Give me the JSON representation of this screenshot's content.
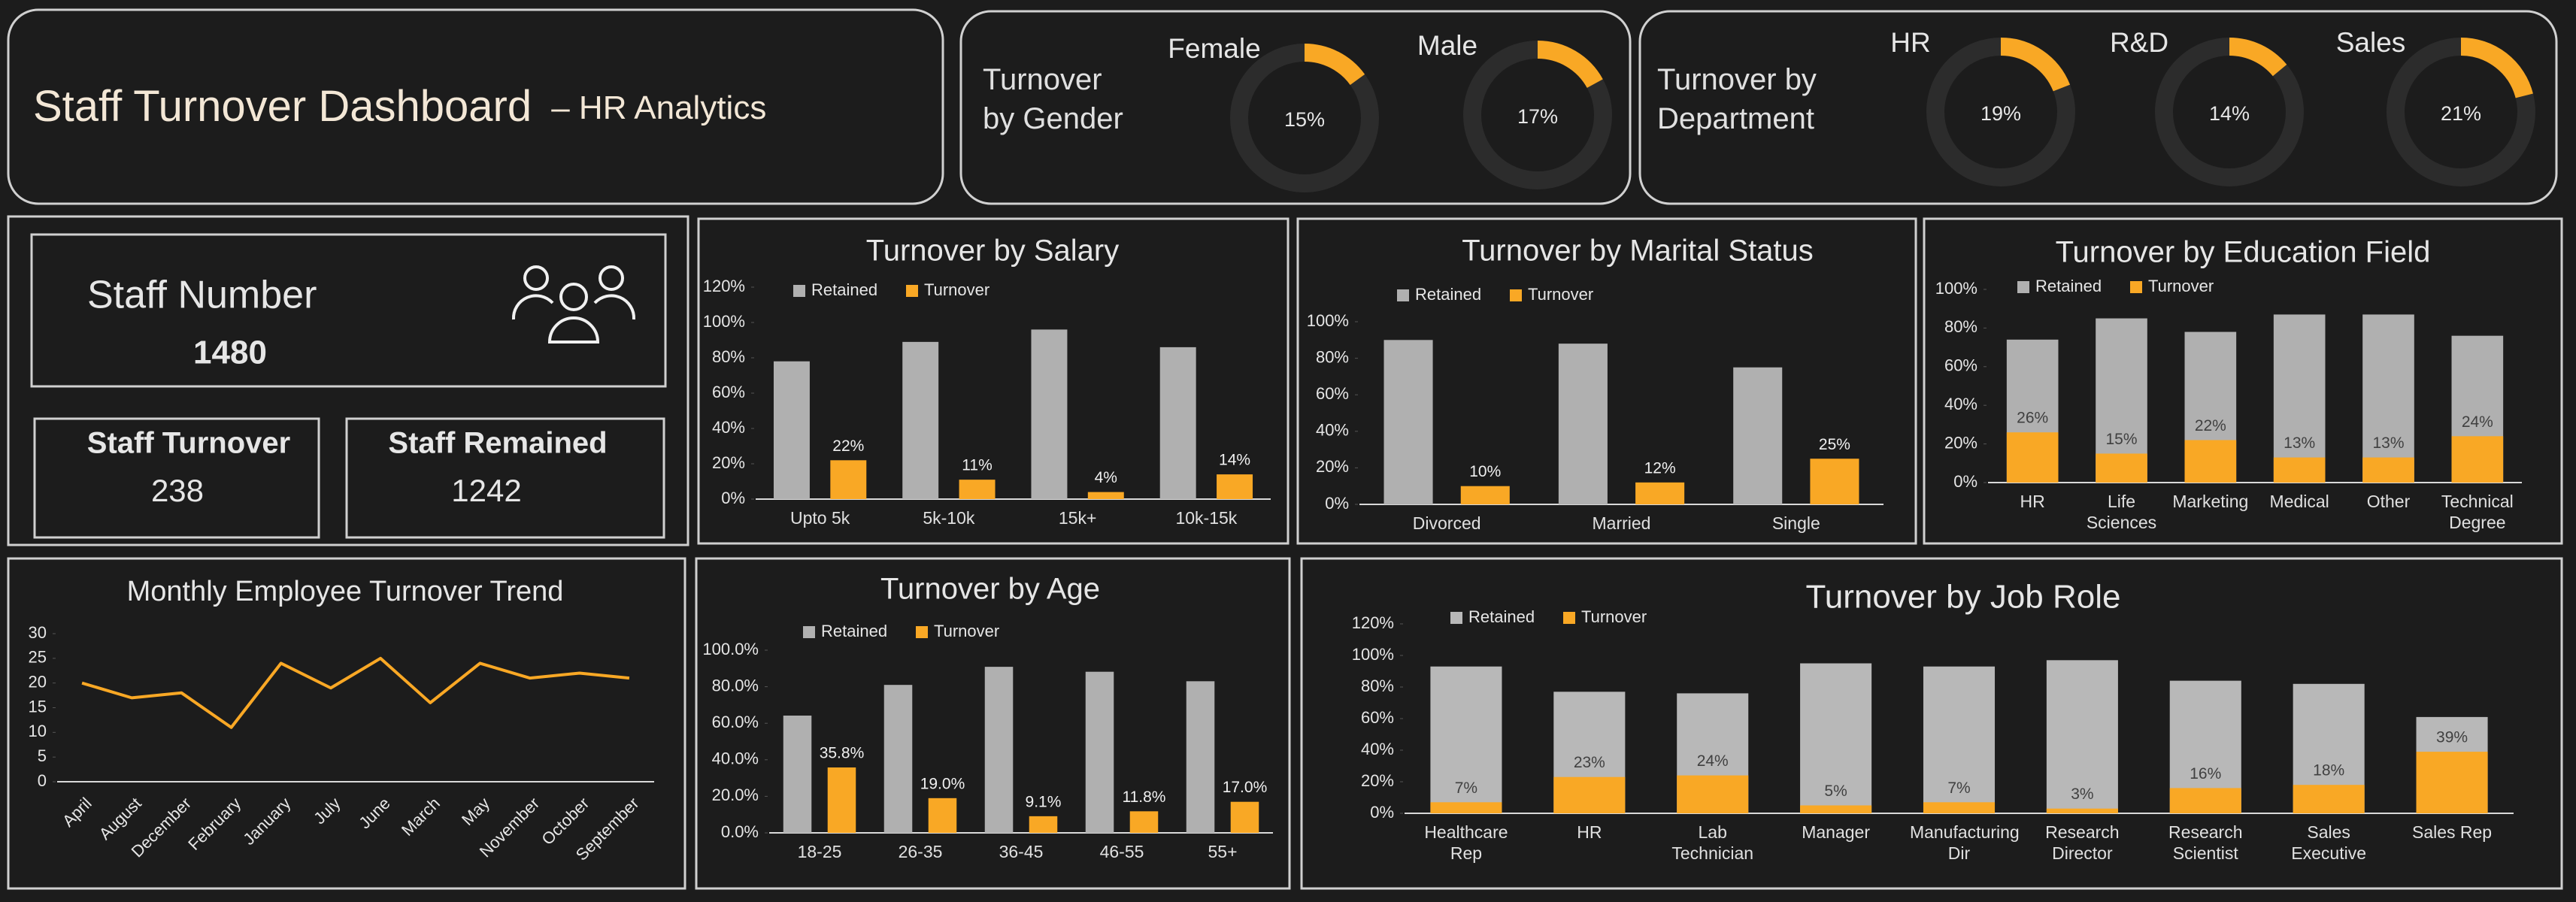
{
  "header": {
    "title": "Staff Turnover Dashboard",
    "subtitle": "– HR Analytics"
  },
  "kpis": {
    "staff_number": {
      "label": "Staff Number",
      "value": 1480
    },
    "staff_turnover": {
      "label": "Staff Turnover",
      "value": 238
    },
    "staff_remained": {
      "label": "Staff Remained",
      "value": 1242
    }
  },
  "chart_data": [
    {
      "type": "donut",
      "title": "Turnover by Gender",
      "categories": [
        "Female",
        "Male"
      ],
      "values": [
        15,
        17
      ],
      "value_labels": [
        "15%",
        "17%"
      ],
      "color": "#f9a825"
    },
    {
      "type": "donut",
      "title": "Turnover by Department",
      "categories": [
        "HR",
        "R&D",
        "Sales"
      ],
      "values": [
        19,
        14,
        21
      ],
      "value_labels": [
        "19%",
        "14%",
        "21%"
      ],
      "color": "#f9a825"
    },
    {
      "type": "bar",
      "title": "Turnover by Salary",
      "categories": [
        "Upto 5k",
        "5k-10k",
        "15k+",
        "10k-15k"
      ],
      "series": [
        {
          "name": "Retained",
          "color": "#b0b0b0",
          "values": [
            78,
            89,
            96,
            86
          ]
        },
        {
          "name": "Turnover",
          "color": "#f9a825",
          "values": [
            22,
            11,
            4,
            14
          ],
          "value_labels": [
            "22%",
            "11%",
            "4%",
            "14%"
          ]
        }
      ],
      "ylim": [
        0,
        120
      ],
      "yticks": [
        {
          "value": 0,
          "label": "0%"
        },
        {
          "value": 20,
          "label": "20%"
        },
        {
          "value": 40,
          "label": "40%"
        },
        {
          "value": 60,
          "label": "60%"
        },
        {
          "value": 80,
          "label": "80%"
        },
        {
          "value": 100,
          "label": "100%"
        },
        {
          "value": 120,
          "label": "120%"
        }
      ],
      "overlap": false
    },
    {
      "type": "bar",
      "title": "Turnover by Marital Status",
      "categories": [
        "Divorced",
        "Married",
        "Single"
      ],
      "series": [
        {
          "name": "Retained",
          "color": "#b0b0b0",
          "values": [
            90,
            88,
            75
          ]
        },
        {
          "name": "Turnover",
          "color": "#f9a825",
          "values": [
            10,
            12,
            25
          ],
          "value_labels": [
            "10%",
            "12%",
            "25%"
          ]
        }
      ],
      "ylim": [
        0,
        100
      ],
      "yticks": [
        {
          "value": 0,
          "label": "0%"
        },
        {
          "value": 20,
          "label": "20%"
        },
        {
          "value": 40,
          "label": "40%"
        },
        {
          "value": 60,
          "label": "60%"
        },
        {
          "value": 80,
          "label": "80%"
        },
        {
          "value": 100,
          "label": "100%"
        }
      ],
      "overlap": false
    },
    {
      "type": "bar",
      "title": "Turnover by Education Field",
      "categories": [
        "HR",
        "Life Sciences",
        "Marketing",
        "Medical",
        "Other",
        "Technical Degree"
      ],
      "series": [
        {
          "name": "Retained",
          "color": "#b0b0b0",
          "values": [
            74,
            85,
            78,
            87,
            87,
            76
          ]
        },
        {
          "name": "Turnover",
          "color": "#f9a825",
          "values": [
            26,
            15,
            22,
            13,
            13,
            24
          ],
          "value_labels": [
            "26%",
            "15%",
            "22%",
            "13%",
            "13%",
            "24%"
          ]
        }
      ],
      "ylim": [
        0,
        100
      ],
      "yticks": [
        {
          "value": 0,
          "label": "0%"
        },
        {
          "value": 20,
          "label": "20%"
        },
        {
          "value": 40,
          "label": "40%"
        },
        {
          "value": 60,
          "label": "60%"
        },
        {
          "value": 80,
          "label": "80%"
        },
        {
          "value": 100,
          "label": "100%"
        }
      ],
      "overlap": true
    },
    {
      "type": "line",
      "title": "Monthly Employee Turnover Trend",
      "categories": [
        "April",
        "August",
        "December",
        "February",
        "January",
        "July",
        "June",
        "March",
        "May",
        "November",
        "October",
        "September"
      ],
      "values": [
        20,
        17,
        18,
        11,
        24,
        19,
        25,
        16,
        24,
        21,
        22,
        21
      ],
      "color": "#f9a825",
      "ylim": [
        0,
        30
      ],
      "yticks": [
        0,
        5,
        10,
        15,
        20,
        25,
        30
      ]
    },
    {
      "type": "bar",
      "title": "Turnover by Age",
      "categories": [
        "18-25",
        "26-35",
        "36-45",
        "46-55",
        "55+"
      ],
      "series": [
        {
          "name": "Retained",
          "color": "#b0b0b0",
          "values": [
            64.2,
            81,
            90.9,
            88.2,
            83
          ]
        },
        {
          "name": "Turnover",
          "color": "#f9a825",
          "values": [
            35.8,
            19,
            9.1,
            11.8,
            17
          ],
          "value_labels": [
            "35.8%",
            "19.0%",
            "9.1%",
            "11.8%",
            "17.0%"
          ]
        }
      ],
      "ylim": [
        0,
        100
      ],
      "yticks": [
        {
          "value": 0,
          "label": "0.0%"
        },
        {
          "value": 20,
          "label": "20.0%"
        },
        {
          "value": 40,
          "label": "40.0%"
        },
        {
          "value": 60,
          "label": "60.0%"
        },
        {
          "value": 80,
          "label": "80.0%"
        },
        {
          "value": 100,
          "label": "100.0%"
        }
      ],
      "overlap": false
    },
    {
      "type": "bar",
      "title": "Turnover by Job Role",
      "categories": [
        "Healthcare Rep",
        "HR",
        "Lab Technician",
        "Manager",
        "Manufacturing Dir",
        "Research Director",
        "Research Scientist",
        "Sales Executive",
        "Sales Rep"
      ],
      "series": [
        {
          "name": "Retained",
          "color": "#b8b8b8",
          "values": [
            93,
            77,
            76,
            95,
            93,
            97,
            84,
            82,
            61
          ]
        },
        {
          "name": "Turnover",
          "color": "#f9a825",
          "values": [
            7,
            23,
            24,
            5,
            7,
            3,
            16,
            18,
            39
          ],
          "value_labels": [
            "7%",
            "23%",
            "24%",
            "5%",
            "7%",
            "3%",
            "16%",
            "18%",
            "39%"
          ]
        }
      ],
      "ylim": [
        0,
        120
      ],
      "yticks": [
        {
          "value": 0,
          "label": "0%"
        },
        {
          "value": 20,
          "label": "20%"
        },
        {
          "value": 40,
          "label": "40%"
        },
        {
          "value": 60,
          "label": "60%"
        },
        {
          "value": 80,
          "label": "80%"
        },
        {
          "value": 100,
          "label": "100%"
        },
        {
          "value": 120,
          "label": "120%"
        }
      ],
      "overlap": true
    }
  ]
}
